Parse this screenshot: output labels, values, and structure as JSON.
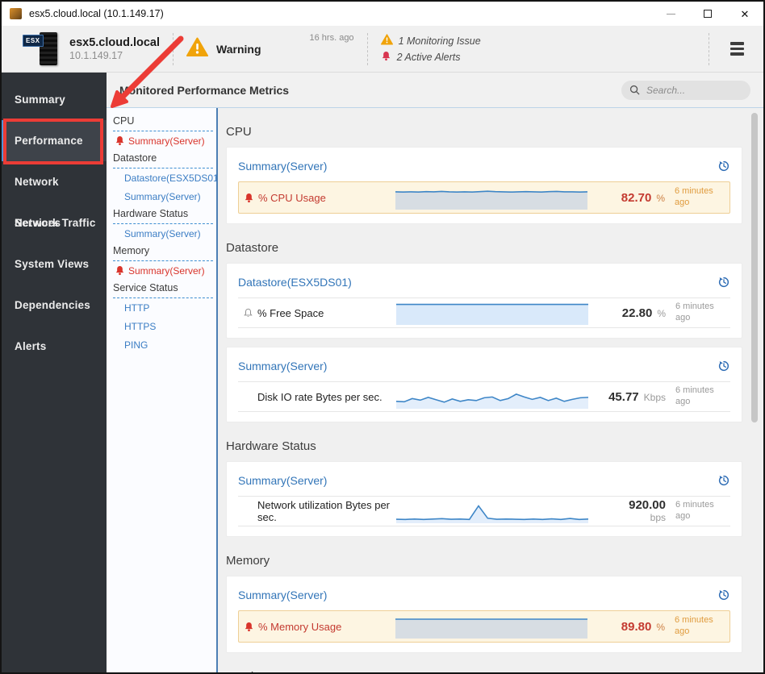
{
  "window": {
    "title": "esx5.cloud.local (10.1.149.17)"
  },
  "header": {
    "icon_label": "ESX",
    "host": "esx5.cloud.local",
    "ip": "10.1.149.17",
    "status_label": "Warning",
    "time_ago": "16 hrs. ago",
    "monitoring_issue": "1 Monitoring Issue",
    "active_alerts": "2 Active Alerts"
  },
  "sidebar": {
    "items": [
      {
        "label": "Summary",
        "selected": false
      },
      {
        "label": "Performance",
        "selected": true
      },
      {
        "label": "Network Services",
        "selected": false
      },
      {
        "label": "Network Traffic",
        "selected": false
      },
      {
        "label": "System Views",
        "selected": false
      },
      {
        "label": "Dependencies",
        "selected": false
      },
      {
        "label": "Alerts",
        "selected": false
      }
    ]
  },
  "tree": {
    "groups": [
      {
        "label": "CPU",
        "children": [
          {
            "label": "Summary(Server)",
            "alert": true
          }
        ]
      },
      {
        "label": "Datastore",
        "children": [
          {
            "label": "Datastore(ESX5DS01)",
            "alert": false
          },
          {
            "label": "Summary(Server)",
            "alert": false
          }
        ]
      },
      {
        "label": "Hardware Status",
        "children": [
          {
            "label": "Summary(Server)",
            "alert": false
          }
        ]
      },
      {
        "label": "Memory",
        "children": [
          {
            "label": "Summary(Server)",
            "alert": true
          }
        ]
      },
      {
        "label": "Service Status",
        "children": [
          {
            "label": "HTTP",
            "alert": false
          },
          {
            "label": "HTTPS",
            "alert": false
          },
          {
            "label": "PING",
            "alert": false
          }
        ]
      }
    ]
  },
  "main": {
    "title": "Monitored Performance Metrics",
    "search_placeholder": "Search...",
    "sections": [
      {
        "heading": "CPU",
        "cards": [
          {
            "link": "Summary(Server)",
            "metrics": [
              {
                "label": "% CPU Usage",
                "icon": "bell-alert",
                "style": "alert",
                "value": "82.70",
                "unit": "%",
                "ago": "6 minutes ago",
                "stacked": false,
                "spark": {
                  "line": "#3e86c7",
                  "fill": "#d7dde3",
                  "points": [
                    82,
                    81,
                    82,
                    81,
                    83,
                    82,
                    84,
                    82,
                    81,
                    82,
                    81,
                    83,
                    85,
                    83,
                    82,
                    81,
                    82,
                    83,
                    82,
                    81,
                    83,
                    84,
                    82,
                    82,
                    81,
                    82
                  ]
                }
              }
            ]
          }
        ]
      },
      {
        "heading": "Datastore",
        "cards": [
          {
            "link": "Datastore(ESX5DS01)",
            "metrics": [
              {
                "label": "% Free Space",
                "icon": "bell-outline",
                "style": "normal",
                "value": "22.80",
                "unit": "%",
                "ago": "6 minutes ago",
                "stacked": false,
                "spark": {
                  "line": "#3e86c7",
                  "fill": "#d9e9fa",
                  "points": [
                    96,
                    96,
                    96,
                    96,
                    96,
                    96,
                    96,
                    96,
                    96,
                    96,
                    96,
                    96,
                    96,
                    96,
                    96,
                    96,
                    96,
                    96,
                    96,
                    96
                  ]
                }
              }
            ]
          },
          {
            "link": "Summary(Server)",
            "metrics": [
              {
                "label": "Disk IO rate Bytes per sec.",
                "icon": "none",
                "style": "normal",
                "value": "45.77",
                "unit": "Kbps",
                "ago": "6 minutes ago",
                "stacked": false,
                "spark": {
                  "line": "#3e86c7",
                  "fill": "#e3eefb",
                  "points": [
                    30,
                    28,
                    44,
                    36,
                    50,
                    38,
                    26,
                    42,
                    30,
                    38,
                    34,
                    48,
                    52,
                    34,
                    44,
                    66,
                    52,
                    40,
                    50,
                    34,
                    46,
                    30,
                    40,
                    48,
                    50
                  ]
                }
              }
            ]
          }
        ]
      },
      {
        "heading": "Hardware Status",
        "cards": [
          {
            "link": "Summary(Server)",
            "metrics": [
              {
                "label": "Network utilization Bytes per sec.",
                "icon": "none",
                "style": "normal",
                "value": "920.00",
                "unit": "bps",
                "ago": "6 minutes ago",
                "stacked": true,
                "spark": {
                  "line": "#3e86c7",
                  "fill": "#e3eefb",
                  "points": [
                    13,
                    12,
                    14,
                    12,
                    14,
                    16,
                    13,
                    14,
                    12,
                    80,
                    18,
                    13,
                    14,
                    13,
                    12,
                    14,
                    12,
                    15,
                    12,
                    17,
                    12,
                    14
                  ]
                }
              }
            ]
          }
        ]
      },
      {
        "heading": "Memory",
        "cards": [
          {
            "link": "Summary(Server)",
            "metrics": [
              {
                "label": "% Memory Usage",
                "icon": "bell-alert",
                "style": "alert",
                "value": "89.80",
                "unit": "%",
                "ago": "6 minutes ago",
                "stacked": false,
                "spark": {
                  "line": "#3e86c7",
                  "fill": "#d7dde3",
                  "points": [
                    90,
                    90,
                    90,
                    90,
                    90,
                    90,
                    90,
                    90,
                    90,
                    90,
                    90,
                    90,
                    90,
                    90,
                    90,
                    90,
                    90,
                    90,
                    90,
                    90
                  ]
                }
              }
            ]
          }
        ]
      },
      {
        "heading": "Service Status",
        "cards": []
      }
    ]
  },
  "colors": {
    "accent_blue": "#3b7dc4",
    "alert_red": "#d9342b",
    "warning_orange": "#f0a30a",
    "active_alert_red": "#d8354f",
    "timestamp_orange": "#e09c3f",
    "selected_nav_accent": "#4f94d6",
    "annotation_red": "#ec3c36"
  }
}
